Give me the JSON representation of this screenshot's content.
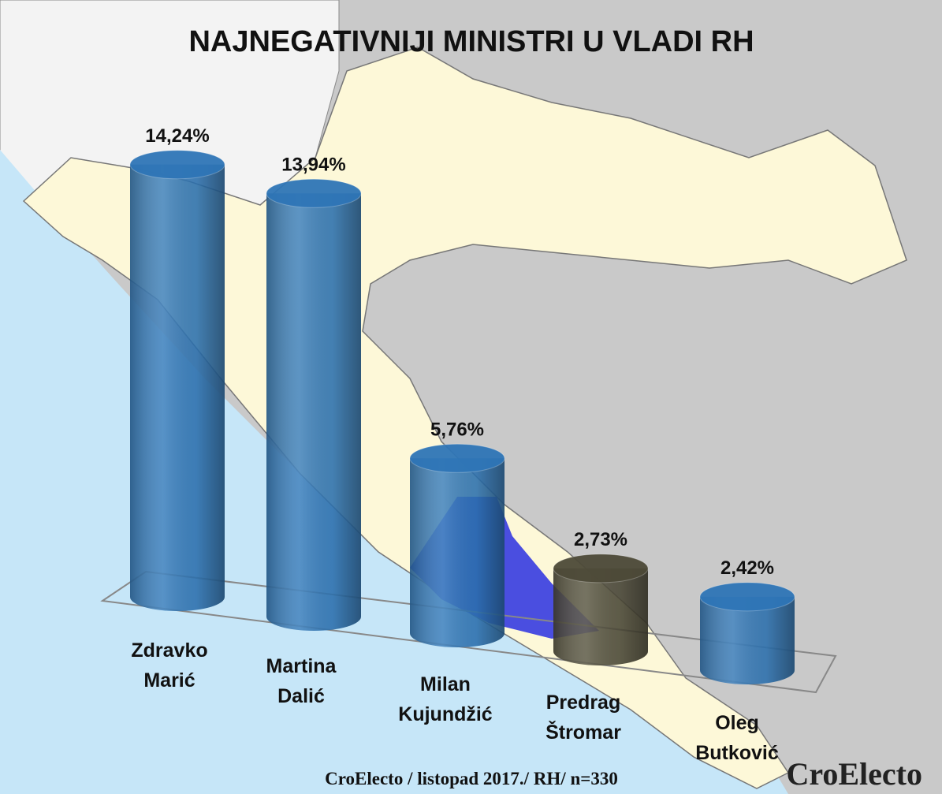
{
  "chart_data": {
    "type": "cylinder",
    "title": "NAJNEGATIVNIJI MINISTRI U VLADI RH",
    "categories": [
      "Zdravko Marić",
      "Martina Dalić",
      "Milan Kujundžić",
      "Predrag Štromar",
      "Oleg Butković"
    ],
    "values": [
      14.24,
      13.94,
      5.76,
      2.73,
      2.42
    ],
    "value_labels": [
      "14,24%",
      "13,94%",
      "5,76%",
      "2,73%",
      "2,42%"
    ],
    "colors": [
      "#2e75b6",
      "#2e75b6",
      "#2e75b6",
      "#4d4a38",
      "#2e75b6"
    ],
    "source": "CroElecto / listopad 2017./ RH/ n=330",
    "watermark": "CroElecto"
  }
}
